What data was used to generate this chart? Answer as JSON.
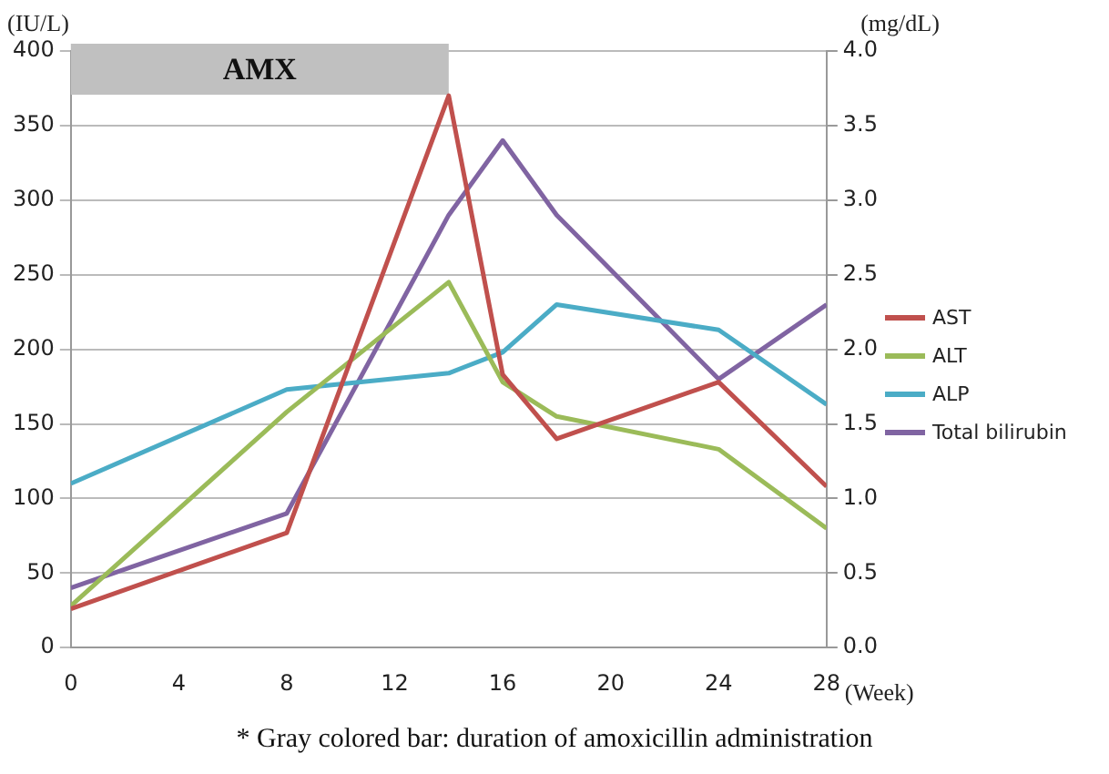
{
  "chart_data": {
    "type": "line",
    "xlabel": "(Week)",
    "ylabel": "(IU/L)",
    "y2label": "(mg/dL)",
    "x": [
      0,
      8,
      14,
      16,
      18,
      24,
      28
    ],
    "series": [
      {
        "name": "AST",
        "color": "#c0504d",
        "values": [
          26,
          77,
          370,
          183,
          140,
          178,
          108
        ]
      },
      {
        "name": "ALT",
        "color": "#9bbb59",
        "values": [
          28,
          158,
          245,
          178,
          155,
          133,
          80
        ]
      },
      {
        "name": "ALP",
        "color": "#4bacc6",
        "values": [
          110,
          173,
          184,
          198,
          230,
          213,
          163
        ]
      },
      {
        "name": "Total bilirubin",
        "color": "#8064a2",
        "axis": "y2",
        "values": [
          0.4,
          0.9,
          2.9,
          3.4,
          2.9,
          1.8,
          2.3
        ]
      }
    ],
    "xlim": [
      0,
      28
    ],
    "xticks": [
      0,
      4,
      8,
      12,
      16,
      20,
      24,
      28
    ],
    "ylim": [
      0,
      400
    ],
    "yticks": [
      0,
      50,
      100,
      150,
      200,
      250,
      300,
      350,
      400
    ],
    "y2lim": [
      0,
      4
    ],
    "y2ticks": [
      {
        "value": 0,
        "label": "0.0"
      },
      {
        "value": 0.5,
        "label": "0.5"
      },
      {
        "value": 1,
        "label": "1.0"
      },
      {
        "value": 1.5,
        "label": "1.5"
      },
      {
        "value": 2,
        "label": "2.0"
      },
      {
        "value": 2.5,
        "label": "2.5"
      },
      {
        "value": 3,
        "label": "3.0"
      },
      {
        "value": 3.5,
        "label": "3.5"
      },
      {
        "value": 4,
        "label": "4.0"
      }
    ],
    "bands": [
      {
        "axis": "x",
        "from": 0,
        "to": 14,
        "label": "AMX",
        "color": "#c0c0c0"
      }
    ],
    "grid": "y",
    "legend": "right",
    "marker": "none",
    "line_style": "solid",
    "annotations": [
      "* Gray colored bar: duration of amoxicillin administration"
    ]
  }
}
